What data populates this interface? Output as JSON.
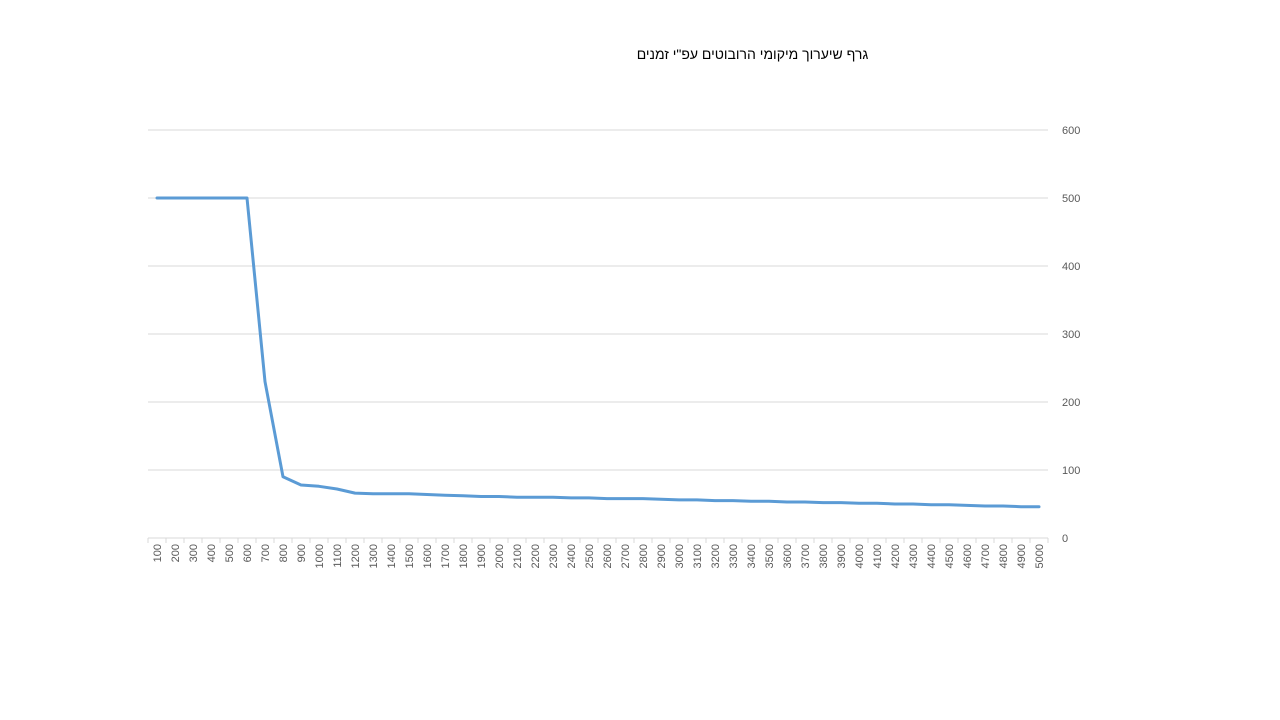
{
  "chart_data": {
    "type": "line",
    "title": "גרף שיערוך מיקומי הרובוטים עפ\"י זמנים",
    "xlabel": "",
    "ylabel": "",
    "ylim": [
      0,
      600
    ],
    "y_axis_side": "right",
    "grid": true,
    "legend": "none",
    "yticks": [
      "0",
      "100",
      "200",
      "300",
      "400",
      "500",
      "600"
    ],
    "x": [
      "100",
      "200",
      "300",
      "400",
      "500",
      "600",
      "700",
      "800",
      "900",
      "1000",
      "1100",
      "1200",
      "1300",
      "1400",
      "1500",
      "1600",
      "1700",
      "1800",
      "1900",
      "2000",
      "2100",
      "2200",
      "2300",
      "2400",
      "2500",
      "2600",
      "2700",
      "2800",
      "2900",
      "3000",
      "3100",
      "3200",
      "3300",
      "3400",
      "3500",
      "3600",
      "3700",
      "3800",
      "3900",
      "4000",
      "4100",
      "4200",
      "4300",
      "4400",
      "4500",
      "4600",
      "4700",
      "4800",
      "4900",
      "5000"
    ],
    "series": [
      {
        "color": "#5b9bd5",
        "values": [
          500,
          500,
          500,
          500,
          500,
          500,
          230,
          90,
          78,
          76,
          72,
          66,
          65,
          65,
          65,
          64,
          63,
          62,
          61,
          61,
          60,
          60,
          60,
          59,
          59,
          58,
          58,
          58,
          57,
          56,
          56,
          55,
          55,
          54,
          54,
          53,
          53,
          52,
          52,
          51,
          51,
          50,
          50,
          49,
          49,
          48,
          47,
          47,
          46,
          46
        ]
      }
    ]
  },
  "colors": {
    "grid": "#d9d9d9",
    "tick_text": "#595959",
    "line": "#5b9bd5"
  }
}
